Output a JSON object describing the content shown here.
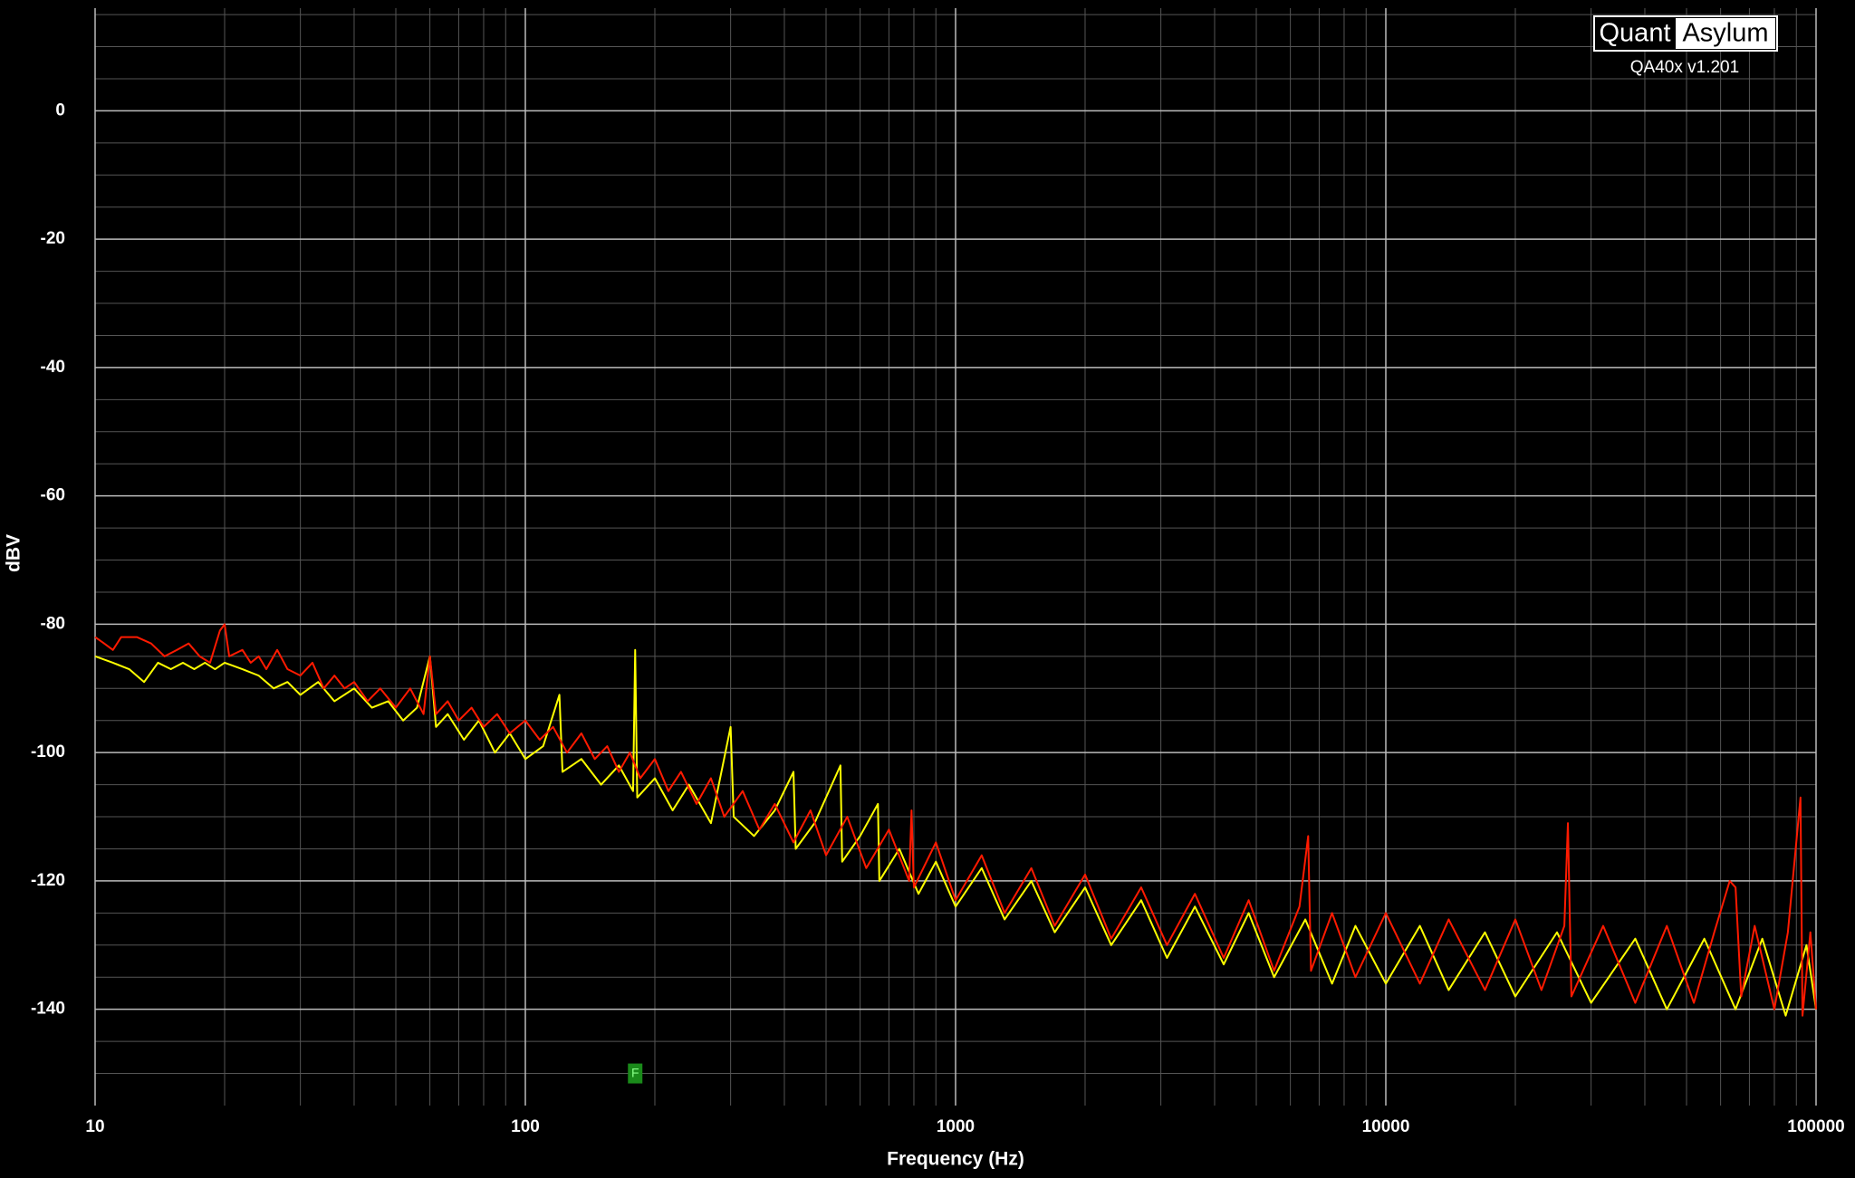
{
  "chart_data": {
    "type": "line",
    "x_label": "Frequency (Hz)",
    "y_label": "dBV",
    "xscale": "log",
    "xlim": [
      10,
      100000
    ],
    "xticks": [
      10,
      100,
      1000,
      10000,
      100000
    ],
    "ylim": [
      -155,
      16
    ],
    "yticks": [
      -140,
      -120,
      -100,
      -80,
      -60,
      -40,
      -20,
      0
    ],
    "grid": true,
    "xminor": [
      20,
      30,
      40,
      50,
      60,
      70,
      80,
      90,
      200,
      300,
      400,
      500,
      600,
      700,
      800,
      900,
      2000,
      3000,
      4000,
      5000,
      6000,
      7000,
      8000,
      9000,
      20000,
      30000,
      40000,
      50000,
      60000,
      70000,
      80000,
      90000
    ],
    "yminor": [
      -150,
      -145,
      -135,
      -130,
      -125,
      -115,
      -110,
      -105,
      -95,
      -90,
      -85,
      -75,
      -70,
      -65,
      -55,
      -50,
      -45,
      -35,
      -30,
      -25,
      -15,
      -10,
      -5,
      5,
      10,
      15
    ],
    "logo": {
      "left": "Quant",
      "right": "Asylum",
      "version": "QA40x v1.201"
    },
    "marker": {
      "label": "F",
      "x": 180,
      "y": -150,
      "color": "#1a8a1a"
    },
    "series": [
      {
        "color": "#ffff00",
        "x": [
          10,
          11,
          12,
          13,
          14,
          15,
          16,
          17,
          18,
          19,
          20,
          22,
          24,
          26,
          28,
          30,
          33,
          36,
          40,
          44,
          48,
          52,
          56,
          60,
          62,
          66,
          72,
          78,
          85,
          92,
          100,
          110,
          120,
          122,
          135,
          150,
          165,
          178,
          180,
          182,
          200,
          220,
          240,
          270,
          300,
          305,
          340,
          380,
          420,
          425,
          470,
          540,
          545,
          600,
          660,
          665,
          740,
          820,
          900,
          1000,
          1150,
          1300,
          1500,
          1700,
          2000,
          2300,
          2700,
          3100,
          3600,
          4200,
          4800,
          5500,
          6500,
          7500,
          8500,
          10000,
          12000,
          14000,
          17000,
          20000,
          25000,
          30000,
          38000,
          45000,
          55000,
          65000,
          75000,
          85000,
          95000,
          100000
        ],
        "values": [
          -85,
          -86,
          -87,
          -89,
          -86,
          -87,
          -86,
          -87,
          -86,
          -87,
          -86,
          -87,
          -88,
          -90,
          -89,
          -91,
          -89,
          -92,
          -90,
          -93,
          -92,
          -95,
          -93,
          -85,
          -96,
          -94,
          -98,
          -95,
          -100,
          -97,
          -101,
          -99,
          -91,
          -103,
          -101,
          -105,
          -102,
          -106,
          -84,
          -107,
          -104,
          -109,
          -105,
          -111,
          -96,
          -110,
          -113,
          -109,
          -103,
          -115,
          -111,
          -102,
          -117,
          -113,
          -108,
          -120,
          -115,
          -122,
          -117,
          -124,
          -118,
          -126,
          -120,
          -128,
          -121,
          -130,
          -123,
          -132,
          -124,
          -133,
          -125,
          -135,
          -126,
          -136,
          -127,
          -136,
          -127,
          -137,
          -128,
          -138,
          -128,
          -139,
          -129,
          -140,
          -129,
          -140,
          -129,
          -141,
          -130,
          -140
        ]
      },
      {
        "color": "#ff1a00",
        "x": [
          10,
          10.5,
          11,
          11.5,
          12.5,
          13.5,
          14.5,
          15.5,
          16.5,
          17.5,
          18.5,
          19.5,
          20,
          20.5,
          22,
          23,
          24,
          25,
          26.5,
          28,
          30,
          32,
          34,
          36,
          38,
          40,
          43,
          46,
          50,
          54,
          58,
          60,
          62,
          66,
          70,
          75,
          80,
          86,
          92,
          100,
          108,
          116,
          125,
          135,
          145,
          155,
          165,
          175,
          185,
          200,
          215,
          230,
          250,
          270,
          290,
          320,
          350,
          380,
          420,
          460,
          500,
          560,
          620,
          700,
          780,
          790,
          800,
          900,
          1000,
          1150,
          1300,
          1500,
          1700,
          2000,
          2300,
          2700,
          3100,
          3600,
          4200,
          4800,
          5500,
          6300,
          6600,
          6700,
          7500,
          8500,
          10000,
          12000,
          14000,
          17000,
          20000,
          23000,
          26000,
          26500,
          27000,
          32000,
          38000,
          45000,
          52000,
          58000,
          63000,
          65000,
          67000,
          72000,
          80000,
          86000,
          92000,
          93000,
          97000,
          100000
        ],
        "values": [
          -82,
          -83,
          -84,
          -82,
          -82,
          -83,
          -85,
          -84,
          -83,
          -85,
          -86,
          -81,
          -80,
          -85,
          -84,
          -86,
          -85,
          -87,
          -84,
          -87,
          -88,
          -86,
          -90,
          -88,
          -90,
          -89,
          -92,
          -90,
          -93,
          -90,
          -94,
          -85,
          -94,
          -92,
          -95,
          -93,
          -96,
          -94,
          -97,
          -95,
          -98,
          -96,
          -100,
          -97,
          -101,
          -99,
          -103,
          -100,
          -104,
          -101,
          -106,
          -103,
          -108,
          -104,
          -110,
          -106,
          -112,
          -108,
          -114,
          -109,
          -116,
          -110,
          -118,
          -112,
          -120,
          -109,
          -121,
          -114,
          -123,
          -116,
          -125,
          -118,
          -127,
          -119,
          -129,
          -121,
          -130,
          -122,
          -132,
          -123,
          -134,
          -124,
          -113,
          -134,
          -125,
          -135,
          -125,
          -136,
          -126,
          -137,
          -126,
          -137,
          -127,
          -111,
          -138,
          -127,
          -139,
          -127,
          -139,
          -128,
          -120,
          -121,
          -138,
          -127,
          -140,
          -128,
          -107,
          -141,
          -128,
          -140
        ]
      }
    ]
  }
}
